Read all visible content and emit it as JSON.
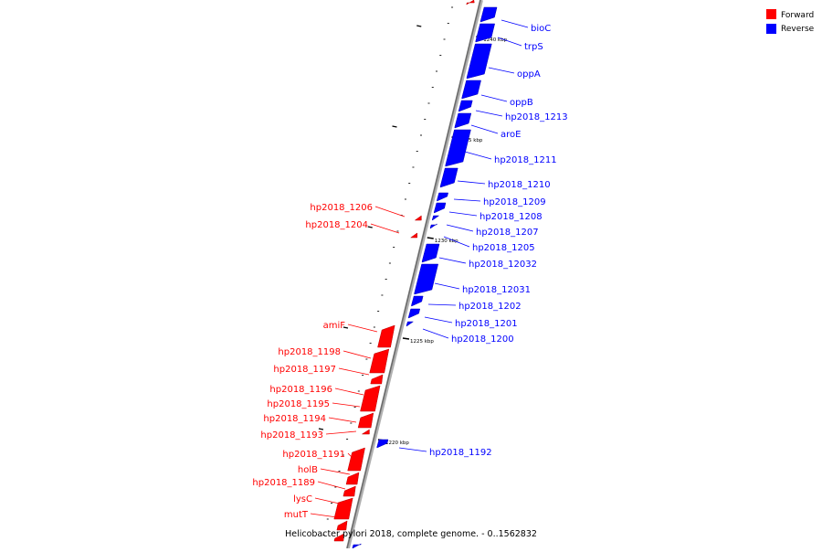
{
  "legend": {
    "forward_label": "Forward",
    "reverse_label": "Reverse",
    "forward_color": "#ff0000",
    "reverse_color": "#0000ff"
  },
  "caption": "Helicobacter pylori 2018, complete genome. - 0..1562832",
  "ticks": [
    "1240 kbp",
    "1235 kbp",
    "1230 kbp",
    "1225 kbp",
    "1220 kbp"
  ],
  "genes": {
    "reverse": [
      "bioC",
      "trpS",
      "oppA",
      "oppB",
      "hp2018_1213",
      "aroE",
      "hp2018_1211",
      "hp2018_1210",
      "hp2018_1209",
      "hp2018_1208",
      "hp2018_1207",
      "hp2018_1205",
      "hp2018_12032",
      "hp2018_12031",
      "hp2018_1202",
      "hp2018_1201",
      "hp2018_1200",
      "hp2018_1192"
    ],
    "forward": [
      "hp2018_1206",
      "hp2018_1204",
      "amiF",
      "hp2018_1198",
      "hp2018_1197",
      "hp2018_1196",
      "hp2018_1195",
      "hp2018_1194",
      "hp2018_1193",
      "hp2018_1191",
      "holB",
      "hp2018_1189",
      "lysC",
      "mutT"
    ]
  }
}
